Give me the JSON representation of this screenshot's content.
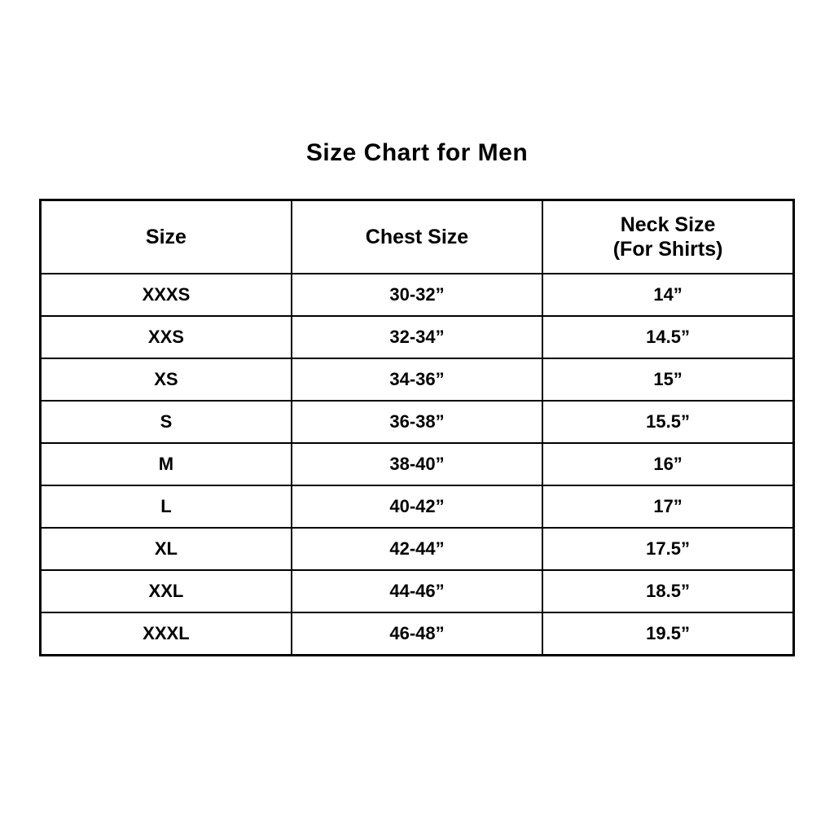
{
  "page_title": "Size Chart for Men",
  "chart_data": {
    "type": "table",
    "title": "Size Chart for Men",
    "columns": [
      {
        "label": "Size",
        "sublabel": ""
      },
      {
        "label": "Chest Size",
        "sublabel": ""
      },
      {
        "label": "Neck Size",
        "sublabel": "(For Shirts)"
      }
    ],
    "rows": [
      [
        "XXXS",
        "30-32”",
        "14”"
      ],
      [
        "XXS",
        "32-34”",
        "14.5”"
      ],
      [
        "XS",
        "34-36”",
        "15”"
      ],
      [
        "S",
        "36-38”",
        "15.5”"
      ],
      [
        "M",
        "38-40”",
        "16”"
      ],
      [
        "L",
        "40-42”",
        "17”"
      ],
      [
        "XL",
        "42-44”",
        "17.5”"
      ],
      [
        "XXL",
        "44-46”",
        "18.5”"
      ],
      [
        "XXXL",
        "46-48”",
        "19.5”"
      ]
    ],
    "layout": {
      "grid": "ruled-table",
      "text_align": "center",
      "all_text_bold": true
    }
  },
  "colors": {
    "background": "#ffffff",
    "border": "#000000",
    "text": "#000000"
  }
}
